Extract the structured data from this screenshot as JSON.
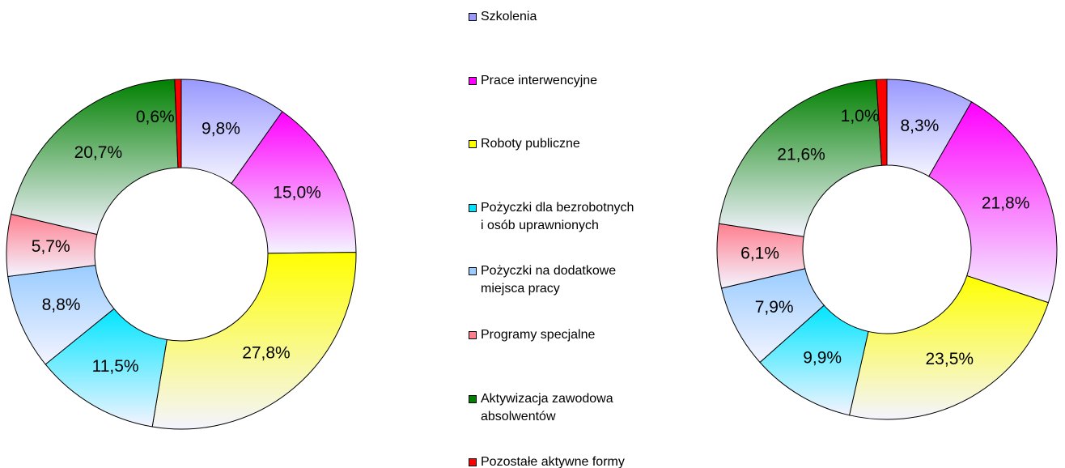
{
  "legend": {
    "labels": [
      "Szkolenia",
      "Prace interwencyjne",
      "Roboty publiczne",
      "Pożyczki dla bezrobotnych\ni osób uprawnionych",
      "Pożyczki na dodatkowe\nmiejsca pracy",
      "Programy specjalne",
      "Aktywizacja zawodowa\nabsolwentów",
      "Pozostałe aktywne formy"
    ],
    "colors": [
      "#9999ff",
      "#ff00ff",
      "#ffff00",
      "#00e5ff",
      "#99ccff",
      "#ff7f8f",
      "#008000",
      "#ff0000"
    ]
  },
  "chart_data": [
    {
      "type": "donut",
      "values": [
        9.8,
        15.0,
        27.8,
        11.5,
        8.8,
        5.7,
        20.7,
        0.6
      ],
      "value_labels": [
        "9,8%",
        "15,0%",
        "27,8%",
        "11,5%",
        "8,8%",
        "5,7%",
        "20,7%",
        "0,6%"
      ]
    },
    {
      "type": "donut",
      "values": [
        8.3,
        21.8,
        23.5,
        9.9,
        7.9,
        6.1,
        21.6,
        1.0
      ],
      "value_labels": [
        "8,3%",
        "21,8%",
        "23,5%",
        "9,9%",
        "7,9%",
        "6,1%",
        "21,6%",
        "1,0%"
      ]
    }
  ]
}
